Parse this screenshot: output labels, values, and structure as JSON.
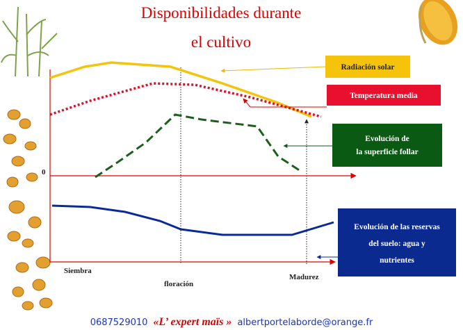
{
  "title": {
    "line1": "Disponibilidades durante",
    "line2": "el cultivo"
  },
  "labels": {
    "radiation": "Radiación solar",
    "temperature": "Temperatura media",
    "leaf": {
      "line1": "Evolución de",
      "line2": "la superficie follar"
    },
    "reserves": {
      "line1": "Evolución de las reservas",
      "line2": "del suelo: agua y",
      "line3": "nutrientes"
    }
  },
  "axis": {
    "zero": "0",
    "sowing": "Siembra",
    "flowering": "floración",
    "maturity": "Madurez"
  },
  "footer": {
    "phone": "0687529010",
    "brand": "«L’ expert maïs »",
    "email": "albertportelaborde@orange.fr"
  }
}
